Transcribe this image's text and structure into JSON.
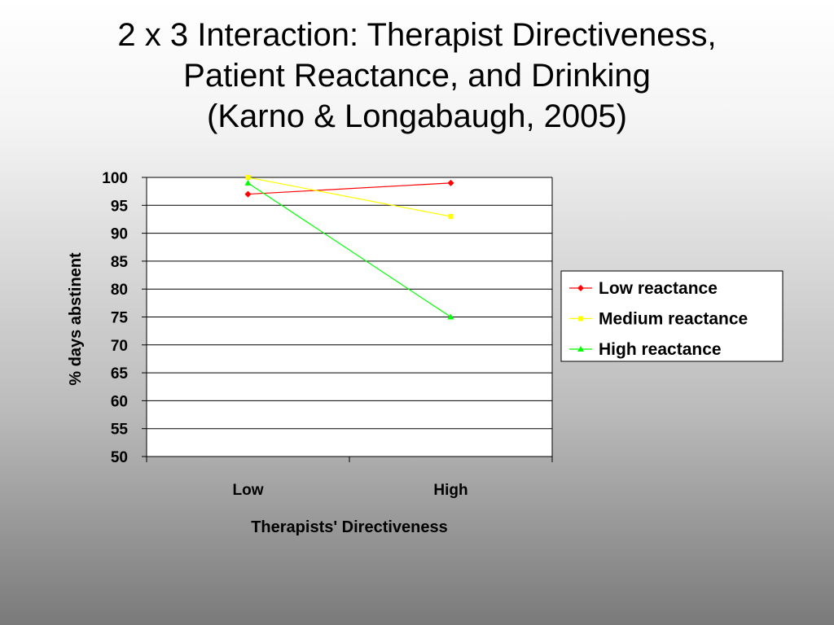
{
  "slide": {
    "title_lines": [
      "2 x 3 Interaction: Therapist Directiveness,",
      "Patient Reactance, and Drinking",
      "(Karno & Longabaugh, 2005)"
    ]
  },
  "chart_data": {
    "type": "line",
    "categories": [
      "Low",
      "High"
    ],
    "series": [
      {
        "name": "Low reactance",
        "values": [
          97,
          99
        ],
        "color": "#ff0000",
        "marker": "diamond"
      },
      {
        "name": "Medium reactance",
        "values": [
          100,
          93
        ],
        "color": "#ffff00",
        "marker": "square"
      },
      {
        "name": "High reactance",
        "values": [
          99,
          75
        ],
        "color": "#00ff00",
        "marker": "triangle"
      }
    ],
    "xlabel": "Therapists' Directiveness",
    "ylabel": "% days abstinent",
    "ylim": [
      50,
      100
    ],
    "yticks": [
      100,
      95,
      90,
      85,
      80,
      75,
      70,
      65,
      60,
      55,
      50
    ],
    "grid": "horizontal",
    "legend": "right",
    "plot_background": "#ffffff"
  }
}
